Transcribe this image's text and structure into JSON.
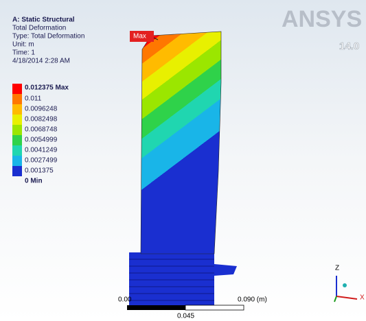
{
  "header": {
    "lines": [
      "A: Static Structural",
      "Total Deformation",
      "Type: Total Deformation",
      "Unit: m",
      "Time: 1",
      "4/18/2014 2:28 AM"
    ]
  },
  "legend": {
    "labels": [
      "0.012375 Max",
      "0.011",
      "0.0096248",
      "0.0082498",
      "0.0068748",
      "0.0054999",
      "0.0041249",
      "0.0027499",
      "0.001375",
      "0 Min"
    ]
  },
  "probe": {
    "label": "Max"
  },
  "logo": {
    "brand": "ANSYS",
    "version": "14.0"
  },
  "scale": {
    "start": "0.00",
    "end": "0.090 (m)",
    "mid": "0.045"
  },
  "triad": {
    "z": "Z",
    "x": "X"
  }
}
